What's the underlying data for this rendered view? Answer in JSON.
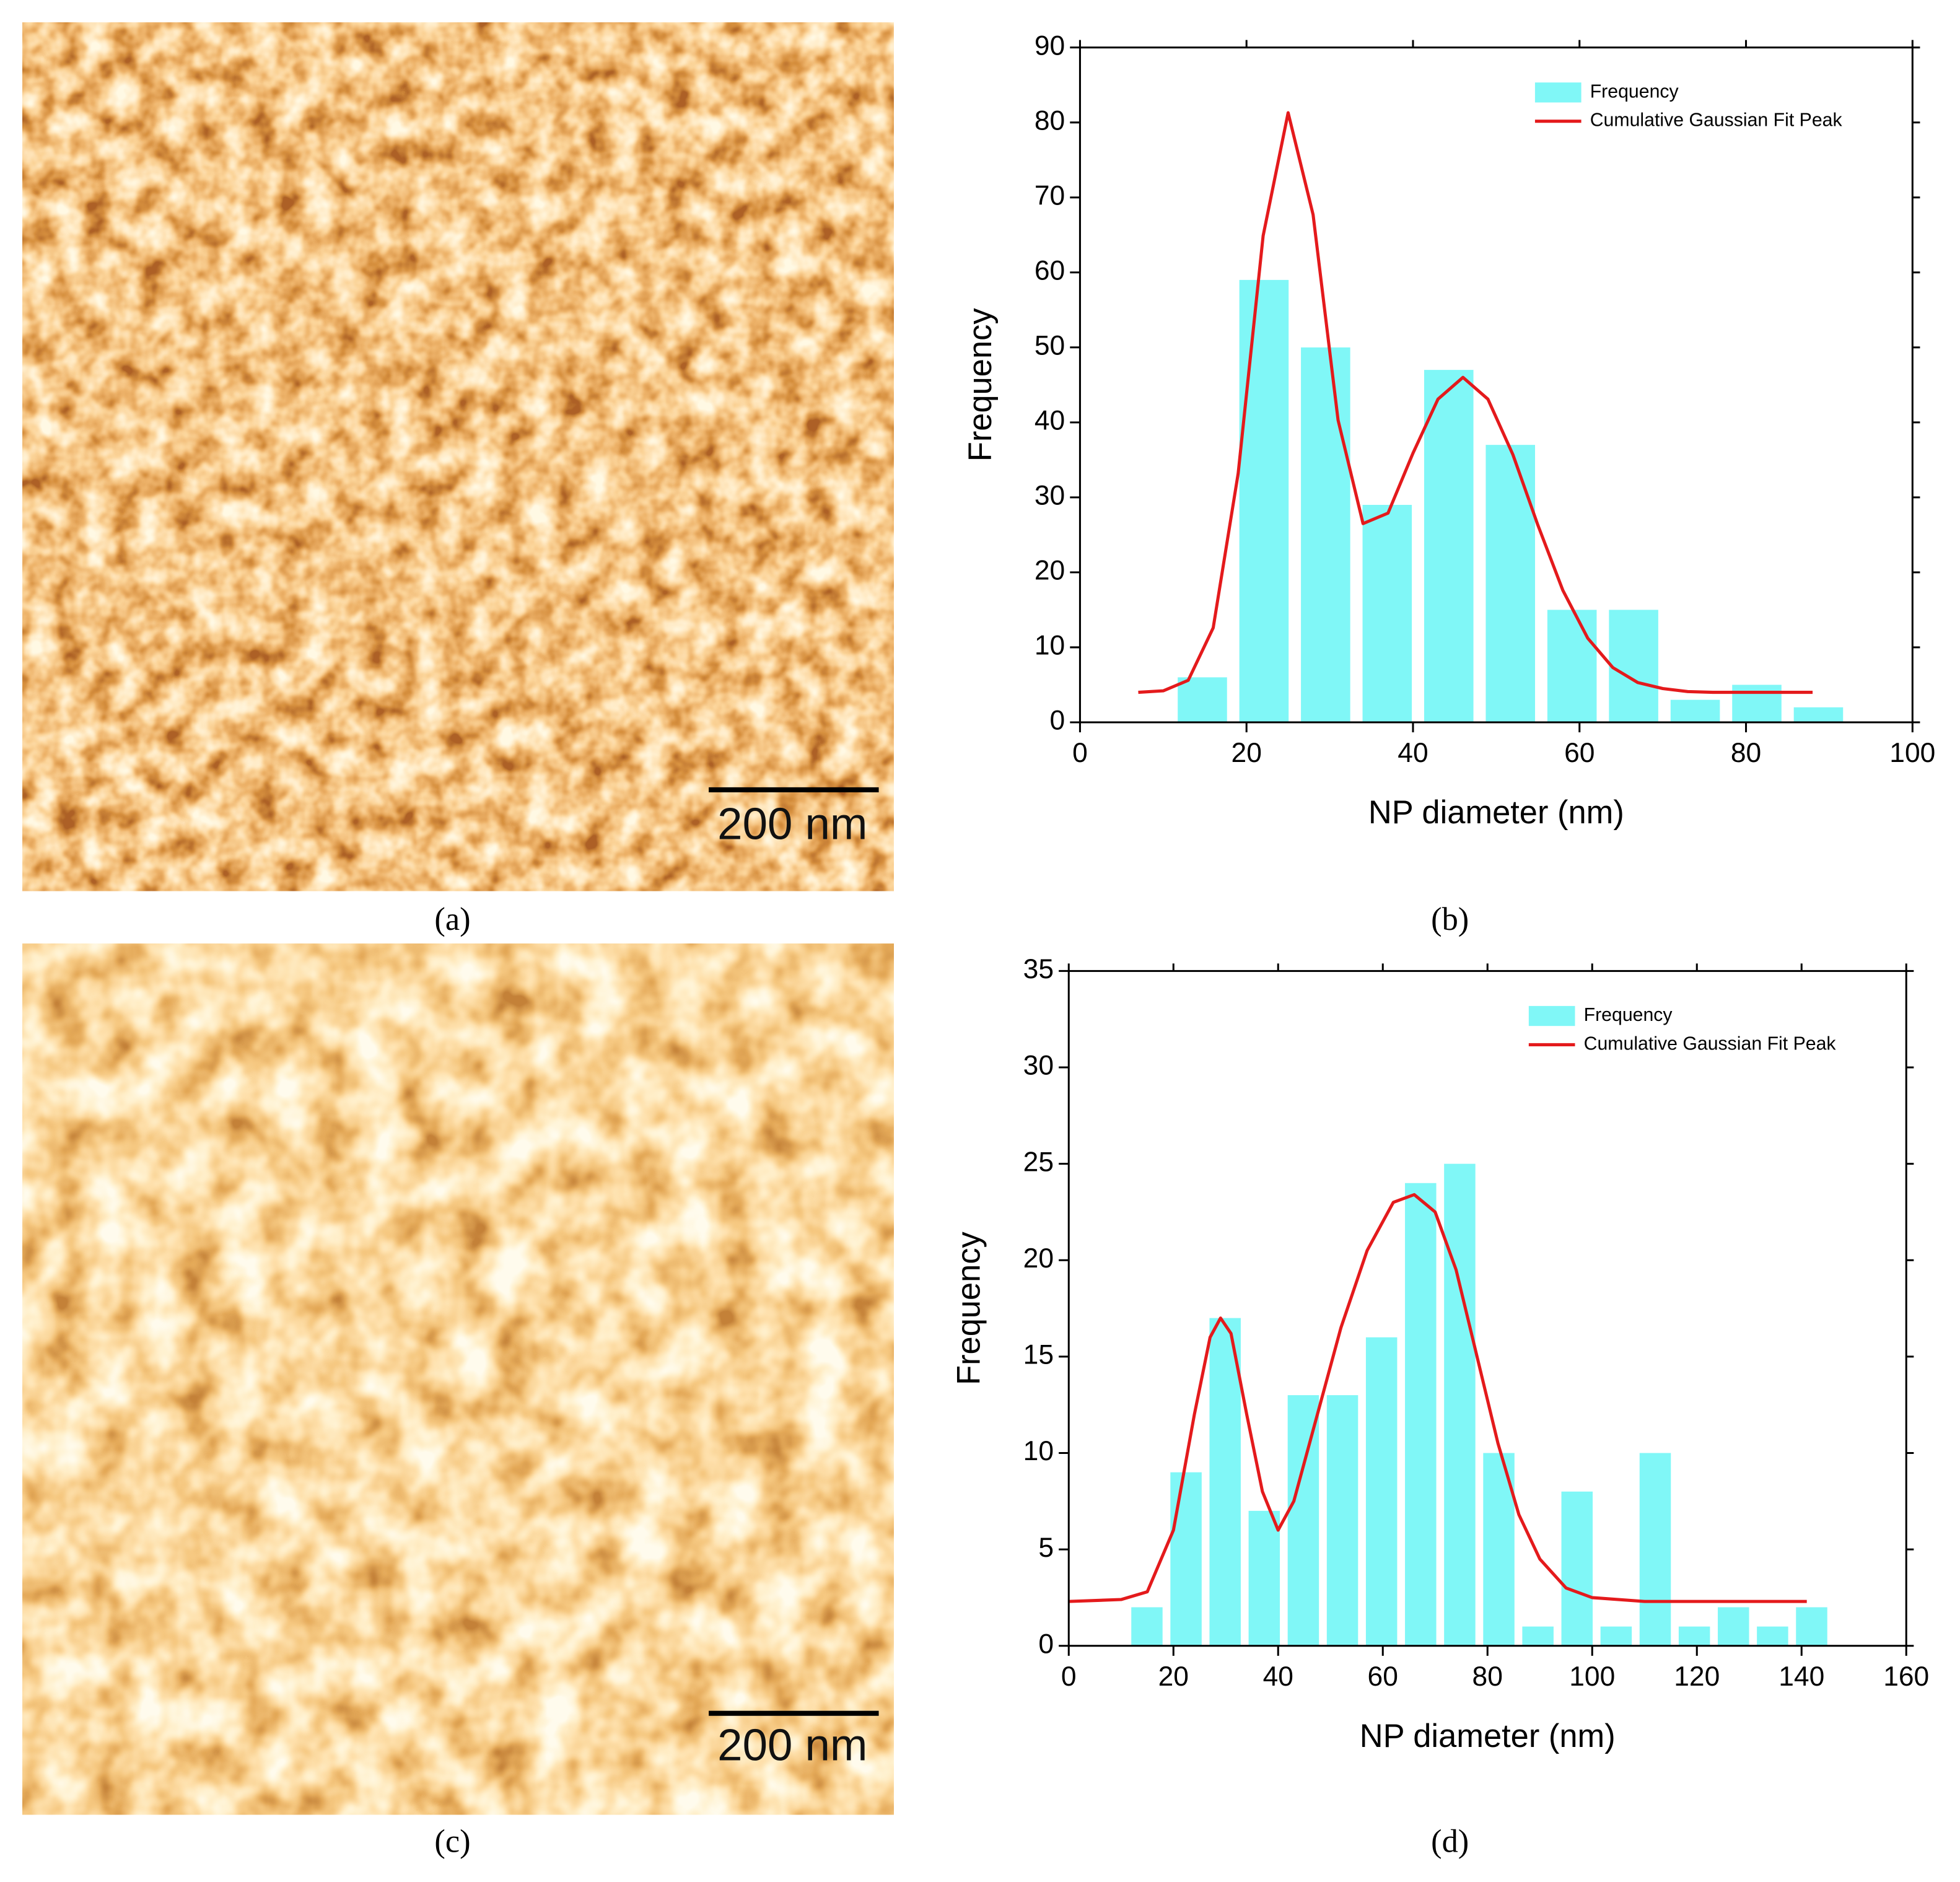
{
  "images": [
    {
      "scale_bar": "200 nm",
      "caption": "(a)"
    },
    {
      "scale_bar": "200 nm",
      "caption": "(c)"
    }
  ],
  "chart_data": [
    {
      "type": "histogram",
      "caption": "(b)",
      "xlabel": "NP diameter (nm)",
      "ylabel": "Frequency",
      "name": "Frequency",
      "color": "#80f7f7",
      "bins": [
        11,
        18.4,
        25.8,
        33.2,
        40.6,
        48,
        55.4,
        62.8,
        70.2,
        77.6,
        85,
        92.4
      ],
      "values": [
        6,
        59,
        50,
        29,
        47,
        37,
        15,
        15,
        3,
        5,
        2
      ],
      "fit": {
        "name": "Cumulative Gaussian Fit Peak",
        "color": "#e41a1c",
        "x": [
          7,
          10,
          13,
          16,
          19,
          22,
          25,
          28,
          31,
          34,
          37,
          40,
          43,
          46,
          49,
          52,
          55,
          58,
          61,
          64,
          67,
          70,
          73,
          76,
          79,
          82,
          85,
          88
        ],
        "values": [
          4.0,
          4.2,
          5.6,
          12.6,
          33.2,
          64.9,
          81.3,
          67.7,
          40.3,
          26.5,
          27.9,
          35.9,
          43.1,
          46,
          43.1,
          35.7,
          26.3,
          17.6,
          11.2,
          7.3,
          5.3,
          4.5,
          4.1,
          4.0,
          4.0,
          4.0,
          4.0,
          4.0
        ]
      },
      "xlim": [
        0,
        100
      ],
      "xticks": [
        0,
        20,
        40,
        60,
        80,
        100
      ],
      "ylim": [
        0,
        90
      ],
      "yticks": [
        0,
        10,
        20,
        30,
        40,
        50,
        60,
        70,
        80,
        90
      ],
      "legend": "upper right"
    },
    {
      "type": "histogram",
      "caption": "(d)",
      "xlabel": "NP diameter (nm)",
      "ylabel": "Frequency",
      "name": "Frequency",
      "color": "#80f7f7",
      "bins": [
        11.2,
        18.67,
        26.14,
        33.61,
        41.08,
        48.55,
        56.02,
        63.49,
        70.96,
        78.43,
        85.9,
        93.37,
        100.84,
        108.31,
        115.78,
        123.25,
        130.72,
        138.19,
        145.66
      ],
      "values": [
        2,
        9,
        17,
        7,
        13,
        13,
        16,
        24,
        25,
        10,
        1,
        8,
        1,
        10,
        1,
        2,
        1,
        2
      ],
      "fit": {
        "name": "Cumulative Gaussian Fit Peak",
        "color": "#e41a1c",
        "x": [
          0,
          10,
          15,
          20,
          24,
          27,
          29,
          31,
          34,
          37,
          40,
          43,
          47,
          52,
          57,
          62,
          66,
          70,
          74,
          78,
          82,
          86,
          90,
          95,
          100,
          110,
          120,
          130,
          141
        ],
        "values": [
          2.3,
          2.4,
          2.8,
          6,
          12,
          16,
          17,
          16.2,
          12,
          8,
          6,
          7.5,
          11.5,
          16.5,
          20.5,
          23,
          23.4,
          22.5,
          19.5,
          15,
          10.5,
          6.8,
          4.5,
          3.0,
          2.5,
          2.3,
          2.3,
          2.3,
          2.3
        ]
      },
      "xlim": [
        0,
        160
      ],
      "xticks": [
        0,
        20,
        40,
        60,
        80,
        100,
        120,
        140,
        160
      ],
      "ylim": [
        0,
        35
      ],
      "yticks": [
        0,
        5,
        10,
        15,
        20,
        25,
        30,
        35
      ],
      "legend": "upper right"
    }
  ]
}
